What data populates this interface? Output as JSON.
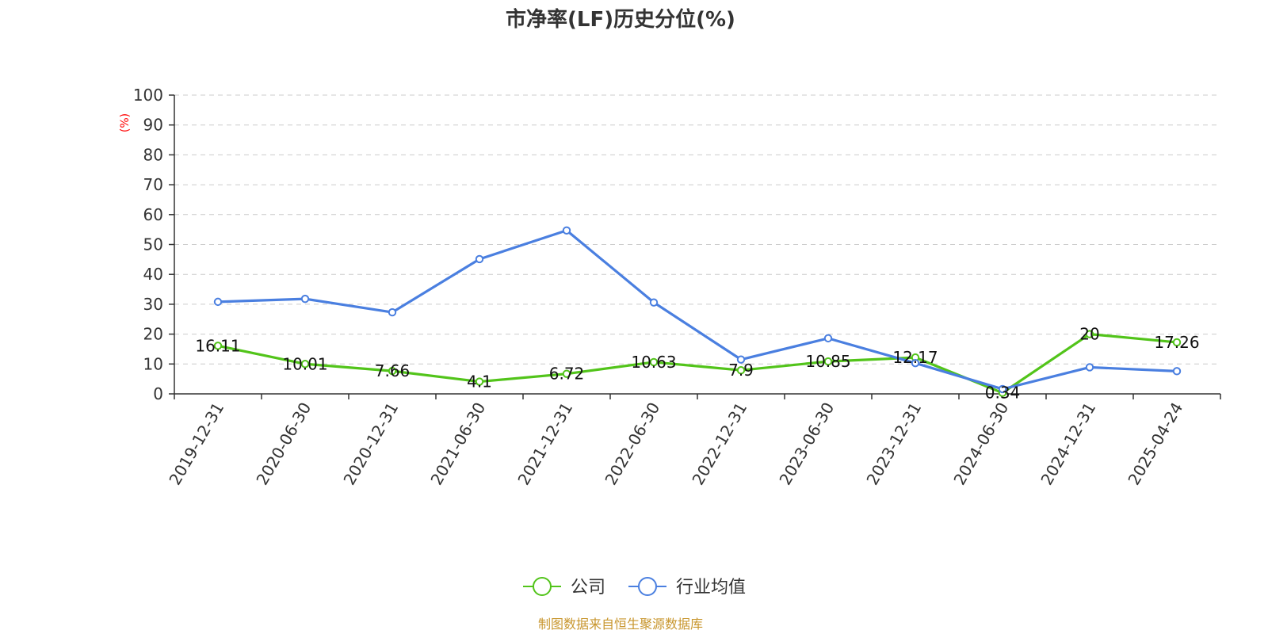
{
  "chart_data": {
    "type": "line",
    "title": "市净率(LF)历史分位(%)",
    "ylabel": "(%)",
    "xlabel": "",
    "ylim": [
      0,
      100
    ],
    "yticks": [
      0,
      10,
      20,
      30,
      40,
      50,
      60,
      70,
      80,
      90,
      100
    ],
    "categories": [
      "2019-12-31",
      "2020-06-30",
      "2020-12-31",
      "2021-06-30",
      "2021-12-31",
      "2022-06-30",
      "2022-12-31",
      "2023-06-30",
      "2023-12-31",
      "2024-06-30",
      "2024-12-31",
      "2025-04-24"
    ],
    "series": [
      {
        "name": "公司",
        "color": "#52c41a",
        "values": [
          16.11,
          10.01,
          7.66,
          4.1,
          6.72,
          10.63,
          7.9,
          10.85,
          12.17,
          0.34,
          20,
          17.26
        ],
        "labels": [
          "16.11",
          "10.01",
          "7.66",
          "4.1",
          "6.72",
          "10.63",
          "7.9",
          "10.85",
          "12.17",
          "0.34",
          "20",
          "17.26"
        ]
      },
      {
        "name": "行业均值",
        "color": "#4a7fe0",
        "values": [
          30.8,
          31.8,
          27.3,
          45.1,
          54.7,
          30.6,
          11.5,
          18.6,
          10.3,
          1.6,
          8.9,
          7.6
        ]
      }
    ],
    "grid": true,
    "legend_position": "bottom"
  },
  "source": "制图数据来自恒生聚源数据库"
}
